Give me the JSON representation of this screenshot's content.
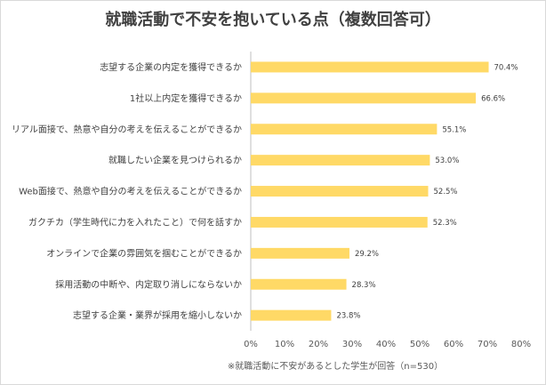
{
  "chart_data": {
    "type": "bar",
    "orientation": "horizontal",
    "title": "就職活動で不安を抱いている点（複数回答可）",
    "note": "※就職活動に不安があるとした学生が回答（n=530）",
    "categories": [
      "志望する企業の内定を獲得できるか",
      "1社以上内定を獲得できるか",
      "リアル面接で、熱意や自分の考えを伝えることができるか",
      "就職したい企業を見つけられるか",
      "Web面接で、熱意や自分の考えを伝えることができるか",
      "ガクチカ（学生時代に力を入れたこと）で何を話すか",
      "オンラインで企業の雰囲気を掴むことができるか",
      "採用活動の中断や、内定取り消しにならないか",
      "志望する企業・業界が採用を縮小しないか"
    ],
    "values": [
      70.4,
      66.6,
      55.1,
      53.0,
      52.5,
      52.3,
      29.2,
      28.3,
      23.8
    ],
    "value_labels": [
      "70.4%",
      "66.6%",
      "55.1%",
      "53.0%",
      "52.5%",
      "52.3%",
      "29.2%",
      "28.3%",
      "23.8%"
    ],
    "xlim": [
      0,
      80
    ],
    "x_ticks": [
      "0%",
      "10%",
      "20%",
      "30%",
      "40%",
      "50%",
      "60%",
      "70%",
      "80%"
    ],
    "bar_color": "#ffd966",
    "gridlines": false
  }
}
